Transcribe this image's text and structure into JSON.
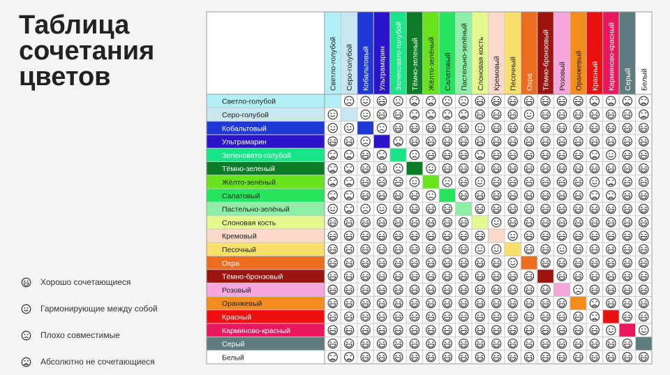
{
  "title": {
    "line1": "Таблица",
    "line2": "сочетания",
    "line3": "цветов"
  },
  "legend": [
    {
      "icon": "very-happy",
      "label": "Хорошо сочетающиеся"
    },
    {
      "icon": "smile",
      "label": "Гармонирующие между собой"
    },
    {
      "icon": "sad",
      "label": "Плохо совместимые"
    },
    {
      "icon": "very-sad",
      "label": "Абсолютно не сочетающиеся"
    }
  ],
  "icon_codes": {
    "G": "very-happy",
    "S": "smile",
    "B": "sad",
    "X": "very-sad"
  },
  "colors": [
    {
      "name": "Светло-голубой",
      "hex": "#b3eff6",
      "text": "#222222"
    },
    {
      "name": "Серо-голубой",
      "hex": "#c8e7f2",
      "text": "#222222"
    },
    {
      "name": "Кобальтовый",
      "hex": "#1f38d8",
      "text": "#ffffff"
    },
    {
      "name": "Ультрамарин",
      "hex": "#2b14c9",
      "text": "#ffffff"
    },
    {
      "name": "Зеленовато-голубой",
      "hex": "#19e487",
      "text": "#ffffff"
    },
    {
      "name": "Тёмно-зеленый",
      "hex": "#0c7d26",
      "text": "#ffffff"
    },
    {
      "name": "Жёлто-зелёный",
      "hex": "#6ae31c",
      "text": "#222222"
    },
    {
      "name": "Салатовый",
      "hex": "#27e45e",
      "text": "#222222"
    },
    {
      "name": "Пастельно-зелёный",
      "hex": "#8ef0a7",
      "text": "#222222"
    },
    {
      "name": "Слоновая кость",
      "hex": "#e3fa8e",
      "text": "#222222"
    },
    {
      "name": "Кремовый",
      "hex": "#fbdac9",
      "text": "#222222"
    },
    {
      "name": "Песочный",
      "hex": "#fae06a",
      "text": "#222222"
    },
    {
      "name": "Охра",
      "hex": "#ec6d20",
      "text": "#ffffff"
    },
    {
      "name": "Тёмно-бронзовый",
      "hex": "#9c1410",
      "text": "#ffffff"
    },
    {
      "name": "Розовый",
      "hex": "#f8a7de",
      "text": "#222222"
    },
    {
      "name": "Оранжевый",
      "hex": "#f48d1c",
      "text": "#222222"
    },
    {
      "name": "Красный",
      "hex": "#ec1010",
      "text": "#ffffff"
    },
    {
      "name": "Карминово-красный",
      "hex": "#e7195c",
      "text": "#ffffff"
    },
    {
      "name": "Серый",
      "hex": "#5f7d80",
      "text": "#ffffff"
    },
    {
      "name": "Белый",
      "hex": "#ffffff",
      "text": "#222222"
    }
  ],
  "matrix": [
    "-BSGBXXBBGGGGGGGXXXX",
    "S-SGGXXXXGGGSGGGGGGX",
    "SS-BGGGGGSGGGGGGGGGG",
    "GGB-XGGGGGGGGGGGGGGG",
    "XXGX-BGGGXGGGGGGXSGG",
    "XXGGB-SGGGGGGGGGGGGG",
    "XXGGGS-BGSGGGGGGSXGG",
    "XXGGGGB-GGGGGGGGXXGG",
    "SXBSGGGG-GGGGGGGGGGG",
    "GGGGGGGGG-SGGGGGGGGG",
    "GGGGGGGGGG-SGGGGGGGG",
    "GGGGGGGGGSS-GGSGGGGG",
    "GGGGGGGGGGGS-GGGGGGG",
    "GGGGGGGGGGGGG-GGGGGG",
    "GGGGGGGGGGGGGG-BGGGG",
    "GGGGGGGGGGGGGGG-XGGG",
    "GGGGGGGGGGGGGGGGX-GG",
    "GGGGGGGGGGGGGGGGGS-S",
    "GGGGGGGGGGGGGGGGGGG-",
    "XXGGGGGGGGGGGGGGGGGG"
  ]
}
